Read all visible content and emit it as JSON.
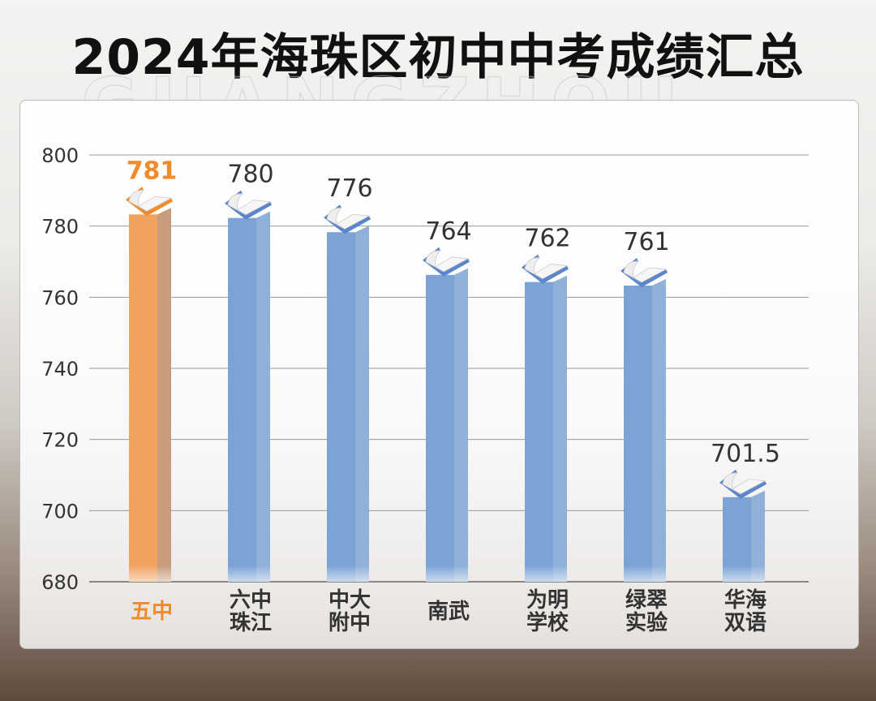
{
  "title": "2024年海珠区初中中考成绩汇总",
  "watermark": "GUANGZHOU",
  "colors": {
    "highlight": "#f0a261",
    "bar": "#7ba3d6",
    "highlight_label": "#f08a2a",
    "label": "#333333"
  },
  "chart_data": {
    "type": "bar",
    "categories": [
      "五中",
      "六中\n珠江",
      "中大\n附中",
      "南武",
      "为明\n学校",
      "绿翠\n实验",
      "华海\n双语"
    ],
    "values": [
      781,
      780,
      776,
      764,
      762,
      761,
      701.5
    ],
    "value_labels": [
      "781",
      "780",
      "776",
      "764",
      "762",
      "761",
      "701.5"
    ],
    "highlight_index": 0,
    "ylim": [
      680,
      800
    ],
    "yticks": [
      680,
      700,
      720,
      740,
      760,
      780,
      800
    ],
    "grid": true,
    "xlabel": "",
    "ylabel": ""
  }
}
